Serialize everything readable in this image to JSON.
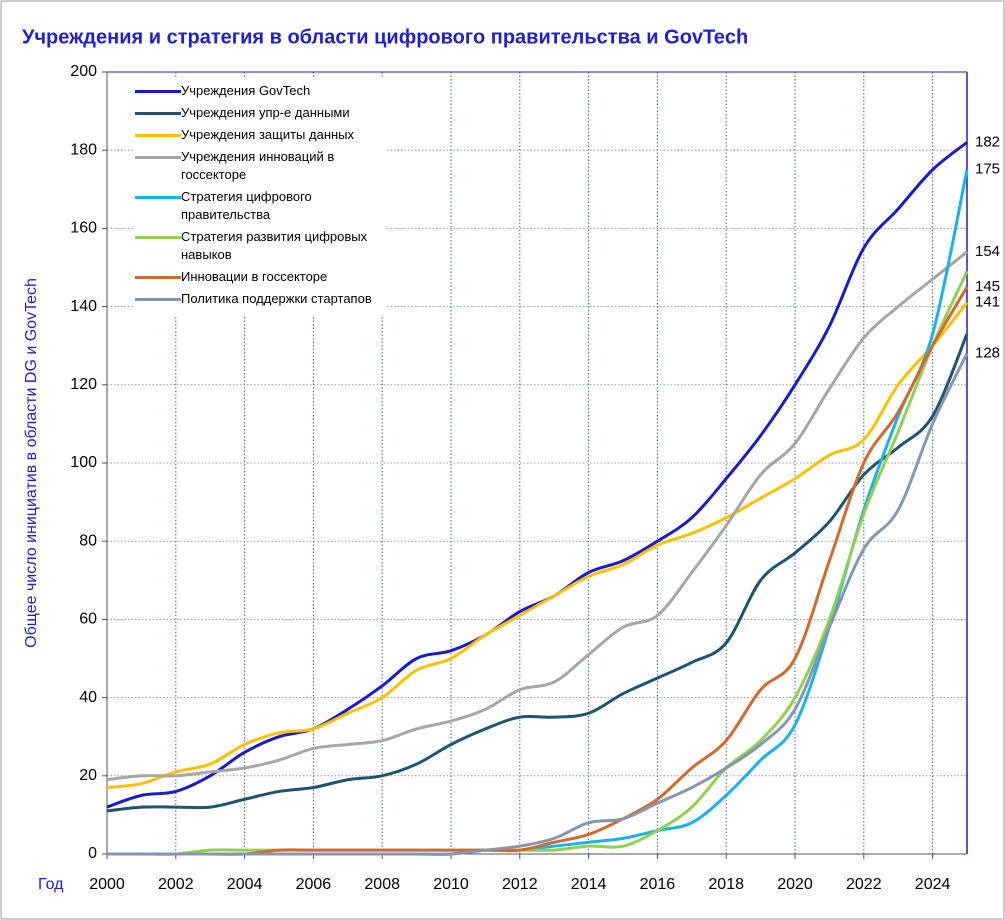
{
  "chart_data": {
    "type": "line",
    "title": "Учреждения и стратегия в области цифрового правительства и GovTech",
    "y_label": "Общее число инициатив в области DG и GovTech",
    "x_label": "Год",
    "x": [
      2000,
      2001,
      2002,
      2003,
      2004,
      2005,
      2006,
      2007,
      2008,
      2009,
      2010,
      2011,
      2012,
      2013,
      2014,
      2015,
      2016,
      2017,
      2018,
      2019,
      2020,
      2021,
      2022,
      2023,
      2024,
      2025
    ],
    "xlim": [
      2000,
      2025
    ],
    "xticks": [
      2000,
      2002,
      2004,
      2006,
      2008,
      2010,
      2012,
      2014,
      2016,
      2018,
      2020,
      2022,
      2024
    ],
    "ylim": [
      0,
      200
    ],
    "yticks": [
      0,
      20,
      40,
      60,
      80,
      100,
      120,
      140,
      160,
      180,
      200
    ],
    "grid": true,
    "legend": "upper left",
    "series": [
      {
        "name": "Учреждения GovTech",
        "color": "#1a1acd",
        "end_label": true,
        "values": [
          12,
          15,
          16,
          20,
          26,
          30,
          32,
          37,
          43,
          50,
          52,
          56,
          62,
          66,
          72,
          75,
          80,
          86,
          96,
          107,
          120,
          135,
          155,
          165,
          175,
          182
        ]
      },
      {
        "name": "Учреждения упр-е данными",
        "color": "#1e5470",
        "end_label": false,
        "values": [
          11,
          12,
          12,
          12,
          14,
          16,
          17,
          19,
          20,
          23,
          28,
          32,
          35,
          35,
          36,
          41,
          45,
          49,
          54,
          70,
          77,
          85,
          97,
          104,
          112,
          133
        ]
      },
      {
        "name": "Учреждения защиты данных",
        "color": "#ffc000",
        "end_label": true,
        "values": [
          17,
          18,
          21,
          23,
          28,
          31,
          32,
          36,
          40,
          47,
          50,
          56,
          61,
          66,
          71,
          74,
          79,
          82,
          86,
          91,
          96,
          102,
          106,
          120,
          130,
          141
        ]
      },
      {
        "name": "Учреждения инноваций в госсекторе",
        "color": "#a6a6a6",
        "end_label": true,
        "values": [
          19,
          20,
          20,
          21,
          22,
          24,
          27,
          28,
          29,
          32,
          34,
          37,
          42,
          44,
          51,
          58,
          61,
          72,
          84,
          97,
          105,
          119,
          132,
          140,
          147,
          154
        ]
      },
      {
        "name": "Стратегия цифрового правительства",
        "color": "#1ab2e8",
        "end_label": true,
        "values": [
          0,
          0,
          0,
          0,
          0,
          0,
          0,
          0,
          0,
          0,
          0,
          1,
          1,
          2,
          3,
          4,
          6,
          8,
          15,
          24,
          33,
          58,
          88,
          112,
          133,
          175
        ]
      },
      {
        "name": "Стратегия развития цифровых навыков",
        "color": "#92d050",
        "end_label": false,
        "values": [
          0,
          0,
          0,
          1,
          1,
          1,
          1,
          1,
          1,
          1,
          1,
          1,
          1,
          1,
          2,
          2,
          6,
          12,
          22,
          29,
          40,
          60,
          87,
          108,
          130,
          149
        ]
      },
      {
        "name": "Инновации в госсекторе",
        "color": "#d2692d",
        "end_label": true,
        "values": [
          0,
          0,
          0,
          0,
          0,
          1,
          1,
          1,
          1,
          1,
          1,
          1,
          1,
          3,
          5,
          9,
          14,
          22,
          29,
          42,
          50,
          75,
          100,
          113,
          130,
          145
        ]
      },
      {
        "name": "Политика поддержки стартапов",
        "color": "#8497b0",
        "end_label": true,
        "values": [
          0,
          0,
          0,
          0,
          0,
          0,
          0,
          0,
          0,
          0,
          0,
          1,
          2,
          4,
          8,
          9,
          13,
          17,
          22,
          28,
          37,
          58,
          78,
          88,
          110,
          128
        ]
      }
    ]
  }
}
